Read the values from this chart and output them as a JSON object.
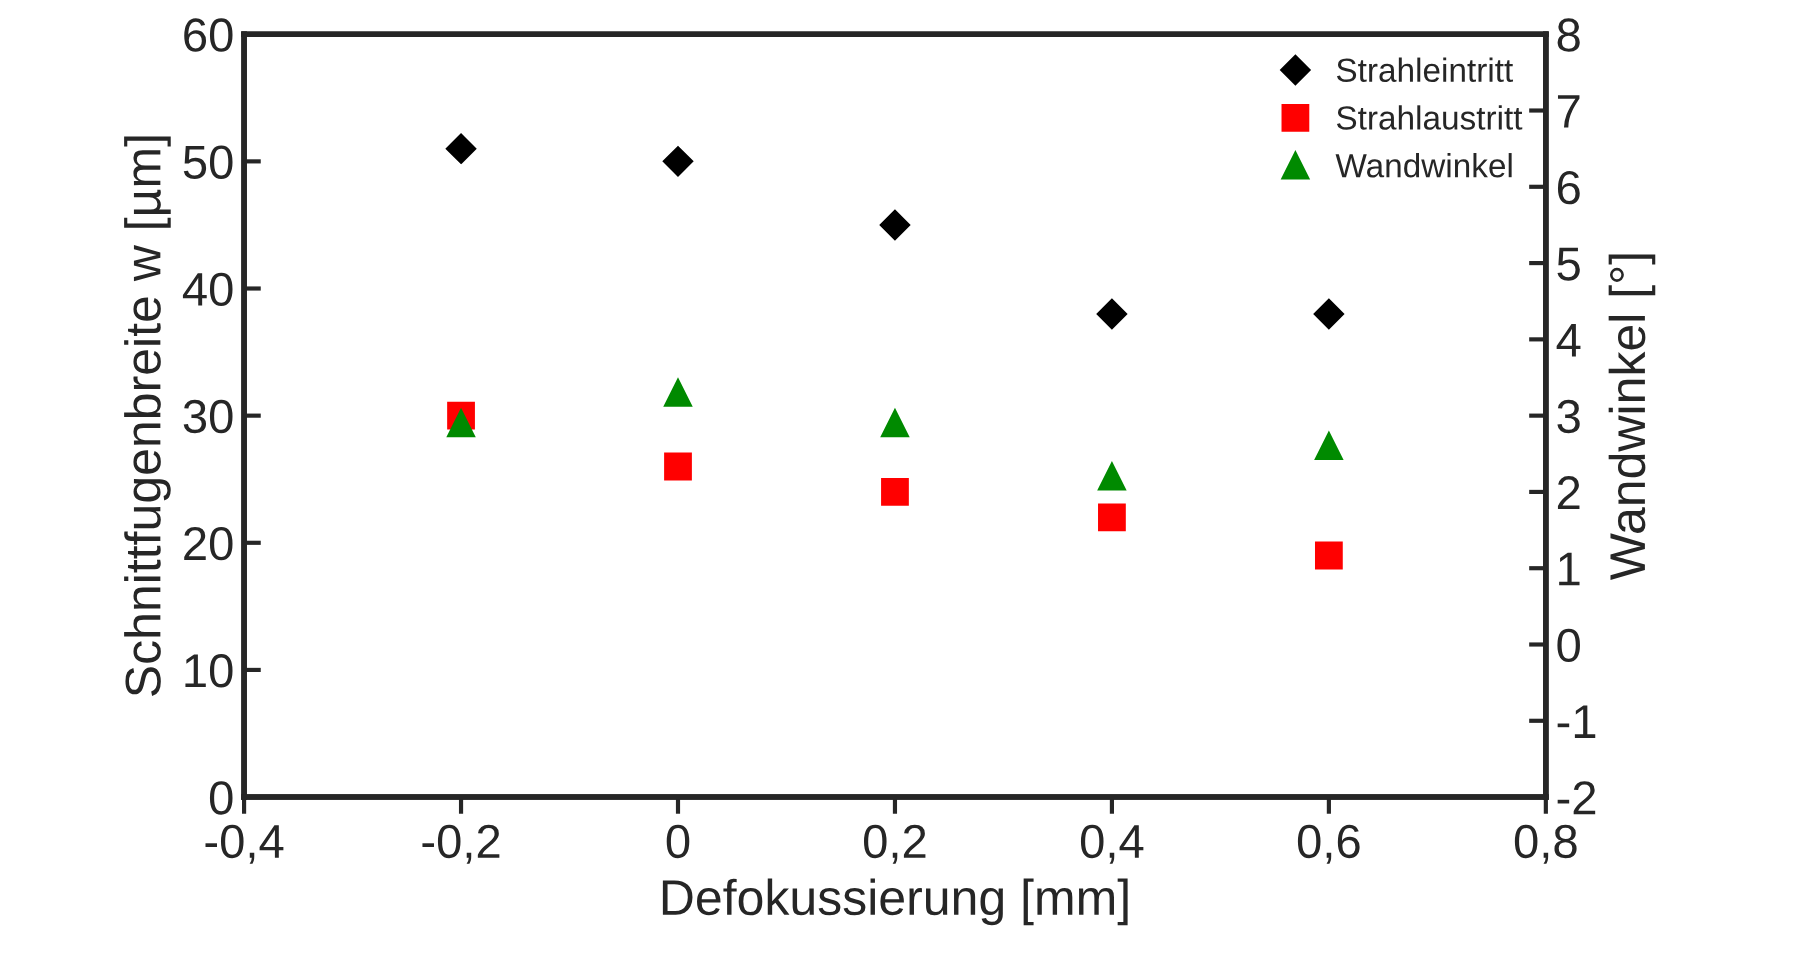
{
  "chart_data": {
    "type": "scatter",
    "xlabel": "Defokussierung [mm]",
    "ylabel": "Schnittfugenbreite w [µm]",
    "y2label": "Wandwinkel [°]",
    "x": [
      -0.2,
      0,
      0.2,
      0.4,
      0.6
    ],
    "series": [
      {
        "name": "Strahleintritt",
        "color": "#000000",
        "marker": "diamond",
        "values": [
          51,
          50,
          45,
          38,
          38
        ]
      },
      {
        "name": "Strahlaustritt",
        "color": "#ff0000",
        "marker": "square",
        "values": [
          30,
          26,
          24,
          22,
          19
        ]
      },
      {
        "name": "Wandwinkel",
        "color": "#008a00",
        "marker": "triangle",
        "axis": "y2",
        "values": [
          2.9,
          3.3,
          2.9,
          2.2,
          2.6
        ]
      }
    ],
    "xlim": [
      -0.4,
      0.8
    ],
    "xticks": [
      {
        "value": -0.4,
        "label": "-0,4"
      },
      {
        "value": -0.2,
        "label": "-0,2"
      },
      0,
      {
        "value": 0.2,
        "label": "0,2"
      },
      {
        "value": 0.4,
        "label": "0,4"
      },
      {
        "value": 0.6,
        "label": "0,6"
      },
      {
        "value": 0.8,
        "label": "0,8"
      }
    ],
    "ylim": [
      0,
      60
    ],
    "yticks": [
      0,
      10,
      20,
      30,
      40,
      50,
      60
    ],
    "y2lim": [
      -2,
      8
    ],
    "y2ticks": [
      -2,
      -1,
      0,
      1,
      2,
      3,
      4,
      5,
      6,
      7,
      8
    ],
    "grid": false,
    "legend": "top right"
  }
}
